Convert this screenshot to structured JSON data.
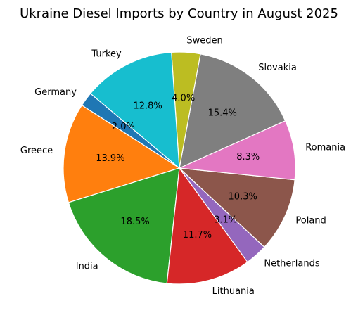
{
  "chart_data": {
    "type": "pie",
    "title": "Ukraine Diesel Imports by Country in August 2025",
    "categories": [
      "Germany",
      "Greece",
      "India",
      "Lithuania",
      "Netherlands",
      "Poland",
      "Romania",
      "Slovakia",
      "Sweden",
      "Turkey"
    ],
    "values": [
      2.0,
      13.9,
      18.5,
      11.7,
      3.1,
      10.3,
      8.3,
      15.4,
      4.0,
      12.8
    ],
    "percent_labels": [
      "2.0%",
      "13.9%",
      "18.5%",
      "11.7%",
      "3.1%",
      "10.3%",
      "8.3%",
      "15.4%",
      "4.0%",
      "12.8%"
    ],
    "colors": [
      "#1f77b4",
      "#ff7f0e",
      "#2ca02c",
      "#d62728",
      "#9467bd",
      "#8c564b",
      "#e377c2",
      "#7f7f7f",
      "#bcbd22",
      "#17becf"
    ],
    "start_angle_deg": 140,
    "direction": "counterclockwise",
    "legend": "none"
  }
}
